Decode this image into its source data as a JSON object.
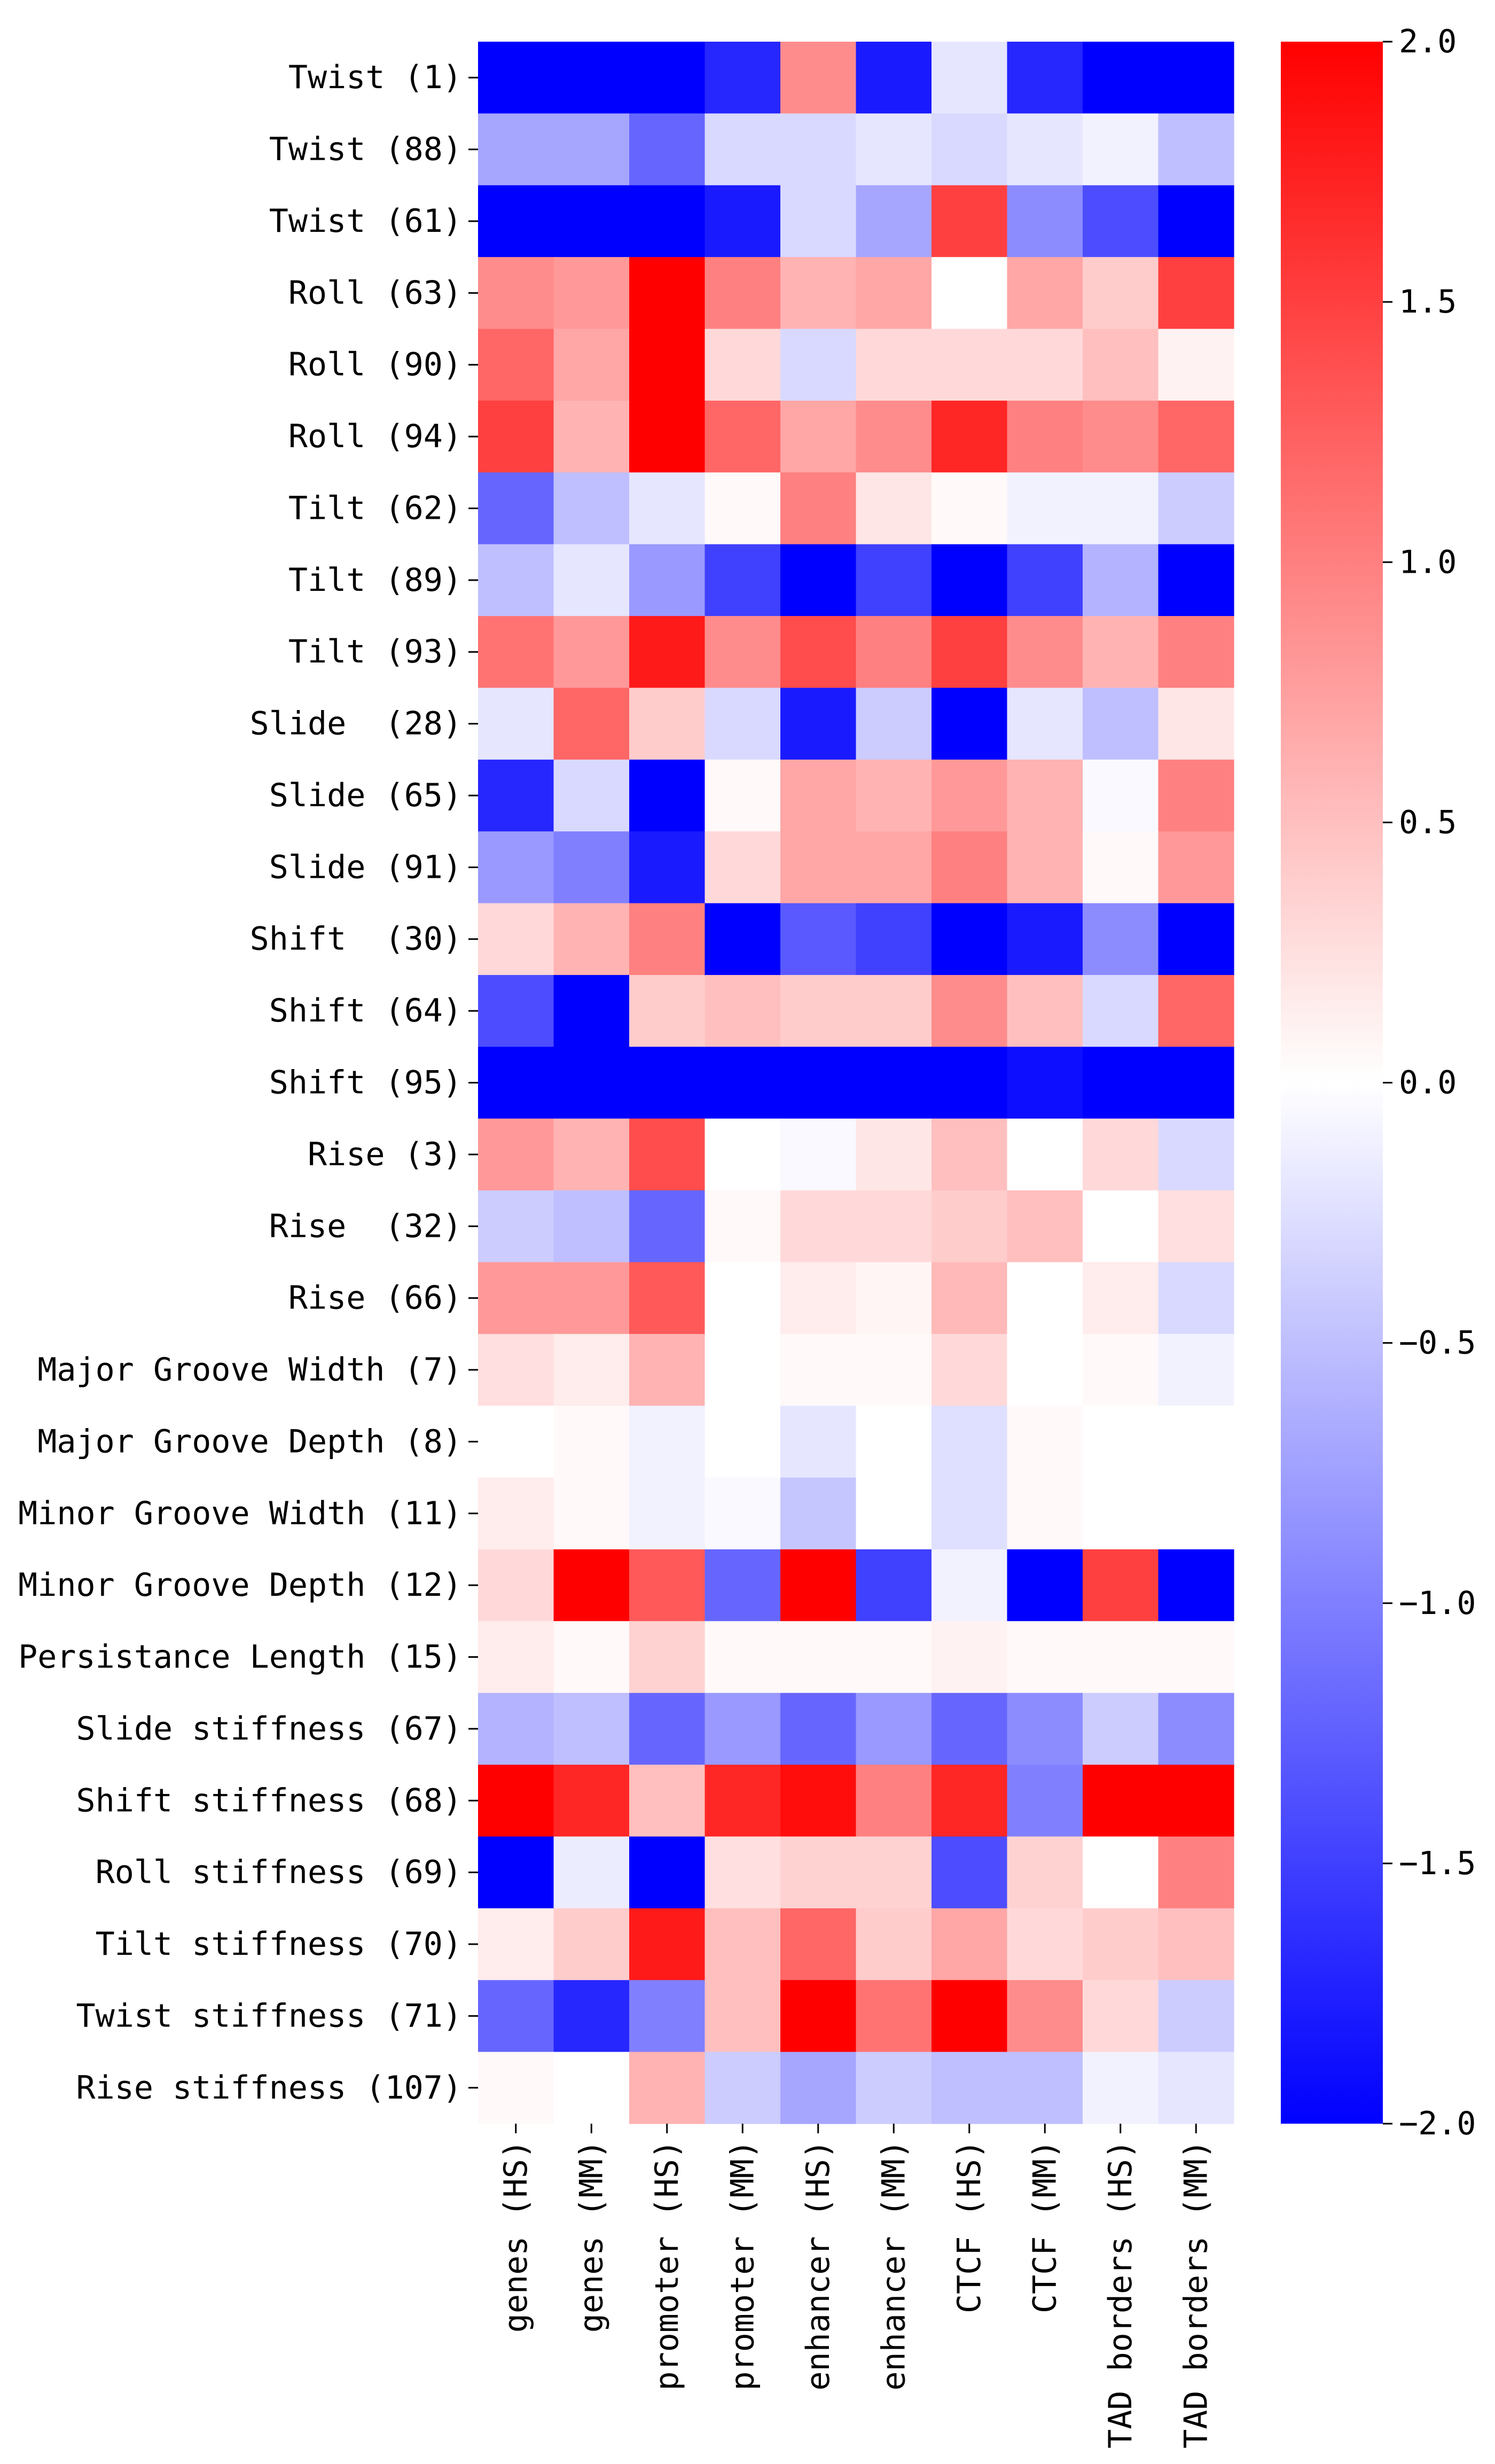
{
  "chart_data": {
    "type": "heatmap",
    "title": "",
    "xlabel": "",
    "ylabel": "",
    "rows": [
      "Twist (1)",
      "Twist (88)",
      "Twist (61)",
      "Roll (63)",
      "Roll (90)",
      "Roll (94)",
      "Tilt (62)",
      "Tilt (89)",
      "Tilt (93)",
      "Slide  (28)",
      "Slide (65)",
      "Slide (91)",
      "Shift  (30)",
      "Shift (64)",
      "Shift (95)",
      "Rise (3)",
      "Rise  (32)",
      "Rise (66)",
      "Major Groove Width (7)",
      "Major Groove Depth (8)",
      "Minor Groove Width (11)",
      "Minor Groove Depth (12)",
      "Persistance Length (15)",
      "Slide stiffness (67)",
      "Shift stiffness (68)",
      "Roll stiffness (69)",
      "Tilt stiffness (70)",
      "Twist stiffness (71)",
      "Rise stiffness (107)"
    ],
    "columns": [
      "genes (HS)",
      "genes (MM)",
      "promoter (HS)",
      "promoter (MM)",
      "enhancer (HS)",
      "enhancer (MM)",
      "CTCF (HS)",
      "CTCF (MM)",
      "TAD borders (HS)",
      "TAD borders (MM)"
    ],
    "values": [
      [
        -2.0,
        -2.0,
        -2.0,
        -1.7,
        0.9,
        -1.8,
        -0.2,
        -1.7,
        -2.0,
        -2.0
      ],
      [
        -0.7,
        -0.7,
        -1.2,
        -0.3,
        -0.3,
        -0.2,
        -0.3,
        -0.2,
        -0.1,
        -0.5
      ],
      [
        -2.0,
        -2.0,
        -2.0,
        -1.8,
        -0.3,
        -0.7,
        1.5,
        -0.9,
        -1.4,
        -2.0
      ],
      [
        0.9,
        0.8,
        2.0,
        1.0,
        0.6,
        0.7,
        0.0,
        0.7,
        0.4,
        1.5
      ],
      [
        1.2,
        0.7,
        2.0,
        0.3,
        -0.3,
        0.3,
        0.3,
        0.3,
        0.5,
        0.1
      ],
      [
        1.5,
        0.6,
        2.0,
        1.2,
        0.7,
        0.9,
        1.7,
        1.0,
        0.9,
        1.2
      ],
      [
        -1.2,
        -0.5,
        -0.2,
        0.05,
        1.0,
        0.2,
        0.05,
        -0.1,
        -0.1,
        -0.4
      ],
      [
        -0.5,
        -0.2,
        -0.8,
        -1.5,
        -2.0,
        -1.5,
        -2.0,
        -1.5,
        -0.6,
        -2.0
      ],
      [
        1.1,
        0.8,
        1.8,
        0.9,
        1.4,
        1.0,
        1.5,
        0.9,
        0.6,
        1.0
      ],
      [
        -0.2,
        1.2,
        0.4,
        -0.3,
        -1.8,
        -0.4,
        -2.0,
        -0.2,
        -0.5,
        0.2
      ],
      [
        -1.7,
        -0.3,
        -2.0,
        0.05,
        0.7,
        0.6,
        0.8,
        0.6,
        -0.05,
        1.0
      ],
      [
        -0.8,
        -1.0,
        -1.8,
        0.3,
        0.7,
        0.7,
        1.0,
        0.6,
        0.05,
        0.8
      ],
      [
        0.3,
        0.6,
        1.0,
        -2.0,
        -1.3,
        -1.5,
        -2.0,
        -1.8,
        -0.9,
        -2.0
      ],
      [
        -1.4,
        -2.0,
        0.4,
        0.5,
        0.4,
        0.4,
        0.9,
        0.5,
        -0.3,
        1.2
      ],
      [
        -2.0,
        -2.0,
        -2.0,
        -2.0,
        -2.0,
        -2.0,
        -2.0,
        -1.9,
        -2.0,
        -2.0
      ],
      [
        0.8,
        0.6,
        1.4,
        0.0,
        -0.05,
        0.2,
        0.5,
        0.0,
        0.3,
        -0.3
      ],
      [
        -0.4,
        -0.5,
        -1.2,
        0.05,
        0.3,
        0.3,
        0.4,
        0.5,
        0.0,
        0.25
      ],
      [
        0.8,
        0.8,
        1.3,
        0.0,
        0.15,
        0.08,
        0.55,
        0.0,
        0.15,
        -0.3
      ],
      [
        0.25,
        0.15,
        0.6,
        0.0,
        0.05,
        0.05,
        0.3,
        0.0,
        0.05,
        -0.1
      ],
      [
        0.0,
        0.05,
        -0.1,
        0.0,
        -0.2,
        0.0,
        -0.25,
        0.05,
        0.0,
        0.0
      ],
      [
        0.15,
        0.05,
        -0.1,
        -0.05,
        -0.45,
        0.0,
        -0.25,
        0.05,
        0.0,
        0.0
      ],
      [
        0.3,
        2.0,
        1.3,
        -1.2,
        2.0,
        -1.5,
        -0.1,
        -2.0,
        1.5,
        -2.0
      ],
      [
        0.15,
        0.05,
        0.35,
        0.05,
        0.05,
        0.05,
        0.1,
        0.05,
        0.05,
        0.05
      ],
      [
        -0.6,
        -0.5,
        -1.2,
        -0.8,
        -1.2,
        -0.8,
        -1.2,
        -0.9,
        -0.4,
        -0.9
      ],
      [
        2.0,
        1.7,
        0.5,
        1.7,
        1.9,
        1.0,
        1.7,
        -1.0,
        2.0,
        2.0
      ],
      [
        -2.0,
        -0.15,
        -2.0,
        0.25,
        0.35,
        0.35,
        -1.4,
        0.35,
        0.0,
        1.0
      ],
      [
        0.15,
        0.4,
        1.8,
        0.5,
        1.2,
        0.4,
        0.7,
        0.3,
        0.4,
        0.5
      ],
      [
        -1.2,
        -1.7,
        -1.0,
        0.5,
        2.0,
        1.1,
        2.0,
        0.9,
        0.3,
        -0.4
      ],
      [
        0.05,
        0.0,
        0.6,
        -0.4,
        -0.7,
        -0.4,
        -0.5,
        -0.5,
        -0.1,
        -0.2
      ]
    ],
    "vmin": -2.0,
    "vmax": 2.0,
    "colormap": "bwr",
    "colorbar_ticks": [
      "2.0",
      "1.5",
      "1.0",
      "0.5",
      "0.0",
      "−0.5",
      "−1.0",
      "−1.5",
      "−2.0"
    ],
    "colorbar_tick_values": [
      2.0,
      1.5,
      1.0,
      0.5,
      0.0,
      -0.5,
      -1.0,
      -1.5,
      -2.0
    ],
    "colors": {
      "low": "#0000ff",
      "mid": "#ffffff",
      "high": "#ff0000"
    }
  }
}
